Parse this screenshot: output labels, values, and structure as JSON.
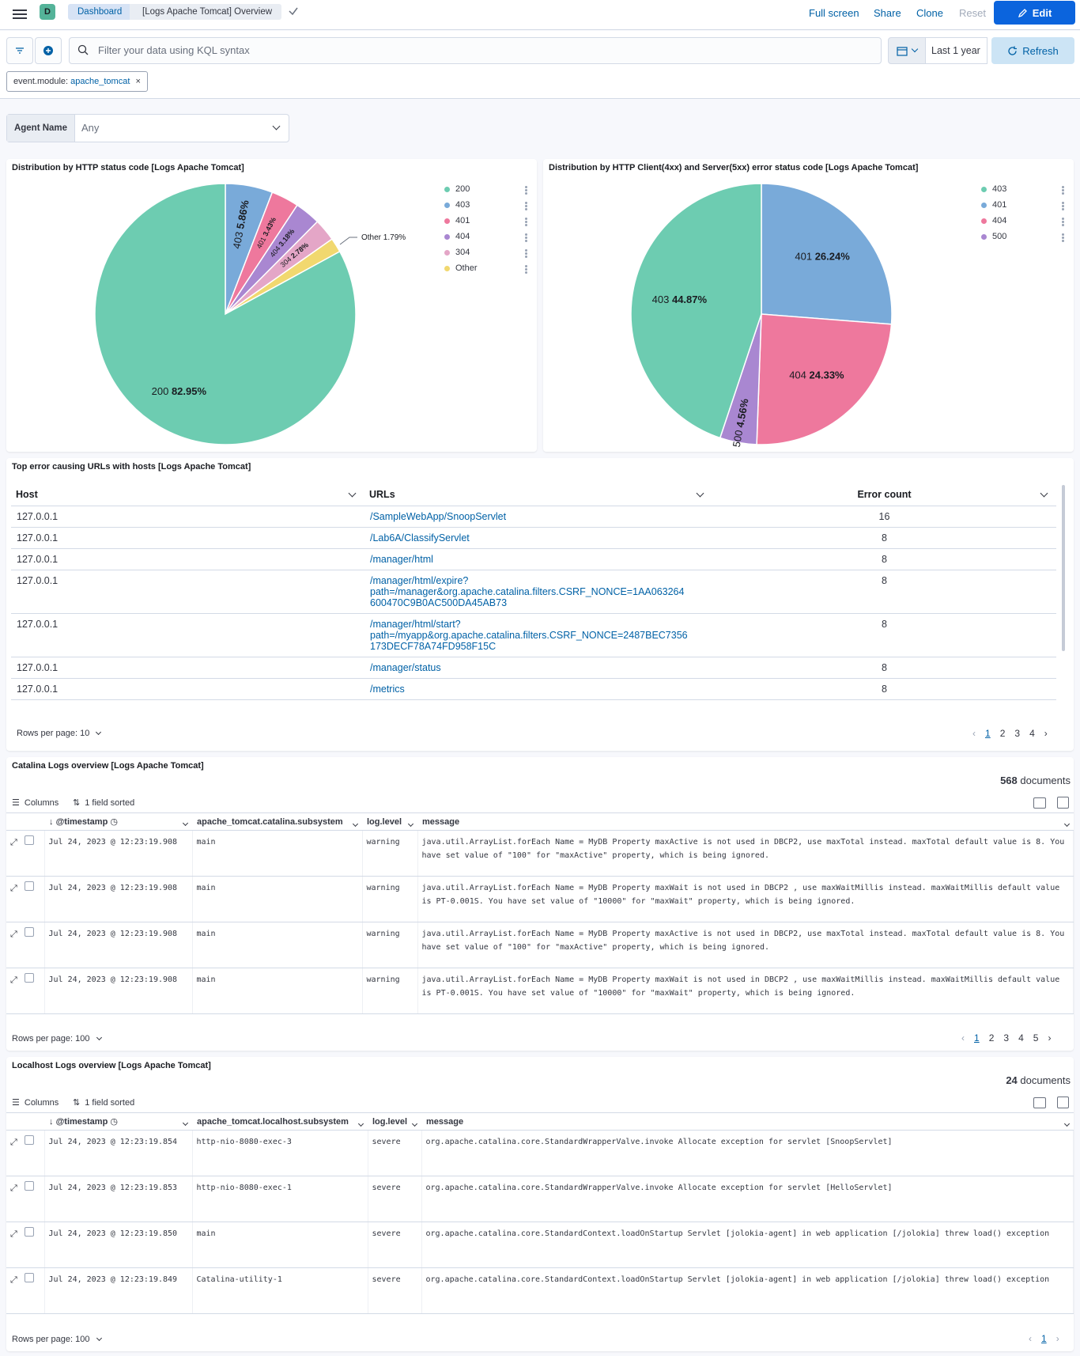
{
  "header": {
    "space_letter": "D",
    "breadcrumb": [
      "Dashboard",
      "[Logs Apache Tomcat] Overview"
    ],
    "links": [
      "Full screen",
      "Share",
      "Clone",
      "Reset"
    ],
    "edit_label": "Edit"
  },
  "query": {
    "placeholder": "Filter your data using KQL syntax",
    "date_range": "Last 1 year",
    "refresh_label": "Refresh",
    "filter_key": "event.module:",
    "filter_value": "apache_tomcat"
  },
  "controls": {
    "label": "Agent Name",
    "value": "Any"
  },
  "panels": {
    "status_pie": {
      "title": "Distribution by HTTP status code [Logs Apache Tomcat]",
      "legend": [
        "200",
        "403",
        "401",
        "404",
        "304",
        "Other"
      ]
    },
    "error_pie": {
      "title": "Distribution by HTTP Client(4xx) and Server(5xx) error status code [Logs Apache Tomcat]",
      "legend": [
        "403",
        "401",
        "404",
        "500"
      ]
    },
    "urls": {
      "title": "Top error causing URLs with hosts [Logs Apache Tomcat]",
      "columns": [
        "Host",
        "URLs",
        "Error count"
      ],
      "rows": [
        {
          "host": "127.0.0.1",
          "url": "/SampleWebApp/SnoopServlet",
          "count": "16"
        },
        {
          "host": "127.0.0.1",
          "url": "/Lab6A/ClassifyServlet",
          "count": "8"
        },
        {
          "host": "127.0.0.1",
          "url": "/manager/html",
          "count": "8"
        },
        {
          "host": "127.0.0.1",
          "url": "/manager/html/expire?\npath=/manager&org.apache.catalina.filters.CSRF_NONCE=1AA063264\n600470C9B0AC500DA45AB73",
          "count": "8"
        },
        {
          "host": "127.0.0.1",
          "url": "/manager/html/start?\npath=/myapp&org.apache.catalina.filters.CSRF_NONCE=2487BEC7356\n173DECF78A74FD958F15C",
          "count": "8"
        },
        {
          "host": "127.0.0.1",
          "url": "/manager/status",
          "count": "8"
        },
        {
          "host": "127.0.0.1",
          "url": "/metrics",
          "count": "8"
        }
      ],
      "rows_per_page": "Rows per page: 10",
      "pages": [
        "1",
        "2",
        "3",
        "4"
      ]
    },
    "catalina": {
      "title": "Catalina Logs overview [Logs Apache Tomcat]",
      "doc_count": "568",
      "doc_label": "documents",
      "toolbar": [
        "Columns",
        "1 field sorted"
      ],
      "columns": [
        "@timestamp",
        "apache_tomcat.catalina.subsystem",
        "log.level",
        "message"
      ],
      "rows": [
        {
          "ts": "Jul 24, 2023 @ 12:23:19.908",
          "sub": "main",
          "level": "warning",
          "msg": "java.util.ArrayList.forEach Name = MyDB Property maxActive is not used in DBCP2, use maxTotal instead. maxTotal default value is 8. You have set value of \"100\" for \"maxActive\" property, which is being ignored."
        },
        {
          "ts": "Jul 24, 2023 @ 12:23:19.908",
          "sub": "main",
          "level": "warning",
          "msg": "java.util.ArrayList.forEach Name = MyDB Property maxWait is not used in DBCP2 , use maxWaitMillis instead. maxWaitMillis default value is PT-0.001S. You have set value of \"10000\" for \"maxWait\" property, which is being ignored."
        },
        {
          "ts": "Jul 24, 2023 @ 12:23:19.908",
          "sub": "main",
          "level": "warning",
          "msg": "java.util.ArrayList.forEach Name = MyDB Property maxActive is not used in DBCP2, use maxTotal instead. maxTotal default value is 8. You have set value of \"100\" for \"maxActive\" property, which is being ignored."
        },
        {
          "ts": "Jul 24, 2023 @ 12:23:19.908",
          "sub": "main",
          "level": "warning",
          "msg": "java.util.ArrayList.forEach Name = MyDB Property maxWait is not used in DBCP2 , use maxWaitMillis instead. maxWaitMillis default value is PT-0.001S. You have set value of \"10000\" for \"maxWait\" property, which is being ignored."
        }
      ],
      "rows_per_page": "Rows per page: 100",
      "pages": [
        "1",
        "2",
        "3",
        "4",
        "5"
      ]
    },
    "localhost": {
      "title": "Localhost Logs overview [Logs Apache Tomcat]",
      "doc_count": "24",
      "doc_label": "documents",
      "toolbar": [
        "Columns",
        "1 field sorted"
      ],
      "columns": [
        "@timestamp",
        "apache_tomcat.localhost.subsystem",
        "log.level",
        "message"
      ],
      "rows": [
        {
          "ts": "Jul 24, 2023 @ 12:23:19.854",
          "sub": "http-nio-8080-exec-3",
          "level": "severe",
          "msg": "org.apache.catalina.core.StandardWrapperValve.invoke Allocate exception for servlet [SnoopServlet]"
        },
        {
          "ts": "Jul 24, 2023 @ 12:23:19.853",
          "sub": "http-nio-8080-exec-1",
          "level": "severe",
          "msg": "org.apache.catalina.core.StandardWrapperValve.invoke Allocate exception for servlet [HelloServlet]"
        },
        {
          "ts": "Jul 24, 2023 @ 12:23:19.850",
          "sub": "main",
          "level": "severe",
          "msg": "org.apache.catalina.core.StandardContext.loadOnStartup Servlet [jolokia-agent] in web application [/jolokia] threw load() exception"
        },
        {
          "ts": "Jul 24, 2023 @ 12:23:19.849",
          "sub": "Catalina-utility-1",
          "level": "severe",
          "msg": "org.apache.catalina.core.StandardContext.loadOnStartup Servlet [jolokia-agent] in web application [/jolokia] threw load() exception"
        }
      ],
      "rows_per_page": "Rows per page: 100",
      "pages": [
        "1"
      ]
    }
  },
  "chart_data": [
    {
      "type": "pie",
      "title": "Distribution by HTTP status code [Logs Apache Tomcat]",
      "categories": [
        "200",
        "403",
        "401",
        "404",
        "304",
        "Other"
      ],
      "values": [
        82.95,
        5.86,
        3.43,
        3.18,
        2.78,
        1.79
      ],
      "labels": [
        "82.95%",
        "5.86%",
        "3.43%",
        "3.18%",
        "2.78%",
        "1.79%"
      ],
      "colors": [
        "#6dccb1",
        "#79aad9",
        "#ee789d",
        "#a987d1",
        "#e4a6c7",
        "#f1d86f"
      ],
      "legend": "right"
    },
    {
      "type": "pie",
      "title": "Distribution by HTTP Client(4xx) and Server(5xx) error status code [Logs Apache Tomcat]",
      "categories": [
        "401",
        "404",
        "500",
        "403"
      ],
      "values": [
        26.24,
        24.33,
        4.56,
        44.87
      ],
      "labels": [
        "26.24%",
        "24.33%",
        "4.56%",
        "44.87%"
      ],
      "colors": [
        "#79aad9",
        "#ee789d",
        "#a987d1",
        "#6dccb1"
      ],
      "legend": "right"
    }
  ]
}
